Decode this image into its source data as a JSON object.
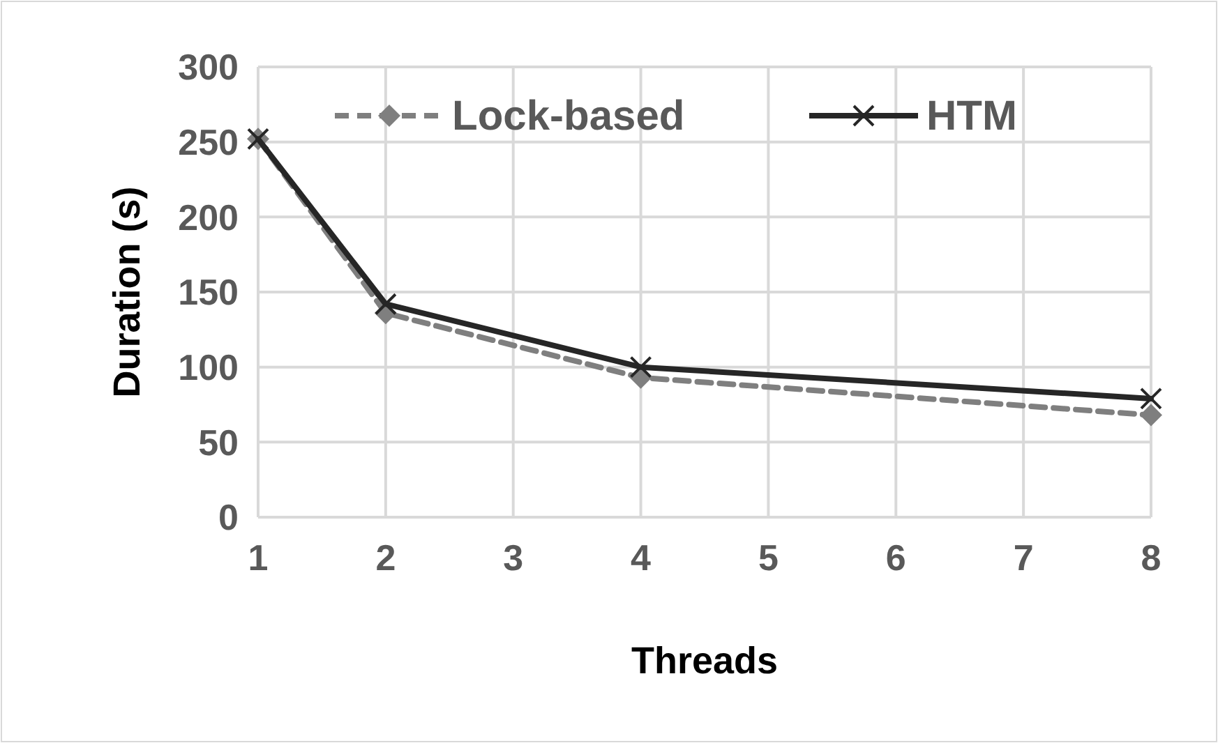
{
  "chart_data": {
    "type": "line",
    "xlabel": "Threads",
    "ylabel": "Duration (s)",
    "x": [
      1,
      2,
      4,
      8
    ],
    "xlim": [
      1,
      8
    ],
    "xticks": [
      1,
      2,
      3,
      4,
      5,
      6,
      7,
      8
    ],
    "ylim": [
      0,
      300
    ],
    "yticks": [
      0,
      50,
      100,
      150,
      200,
      250,
      300
    ],
    "grid": true,
    "legend": "top",
    "series": [
      {
        "name": "Lock-based",
        "color": "#7f7f7f",
        "values": [
          252,
          136,
          93,
          68
        ],
        "marker": "diamond",
        "line_style": "dashed"
      },
      {
        "name": "HTM",
        "color": "#262626",
        "values": [
          252,
          142,
          100,
          79
        ],
        "marker": "cross",
        "line_style": "solid"
      }
    ]
  }
}
